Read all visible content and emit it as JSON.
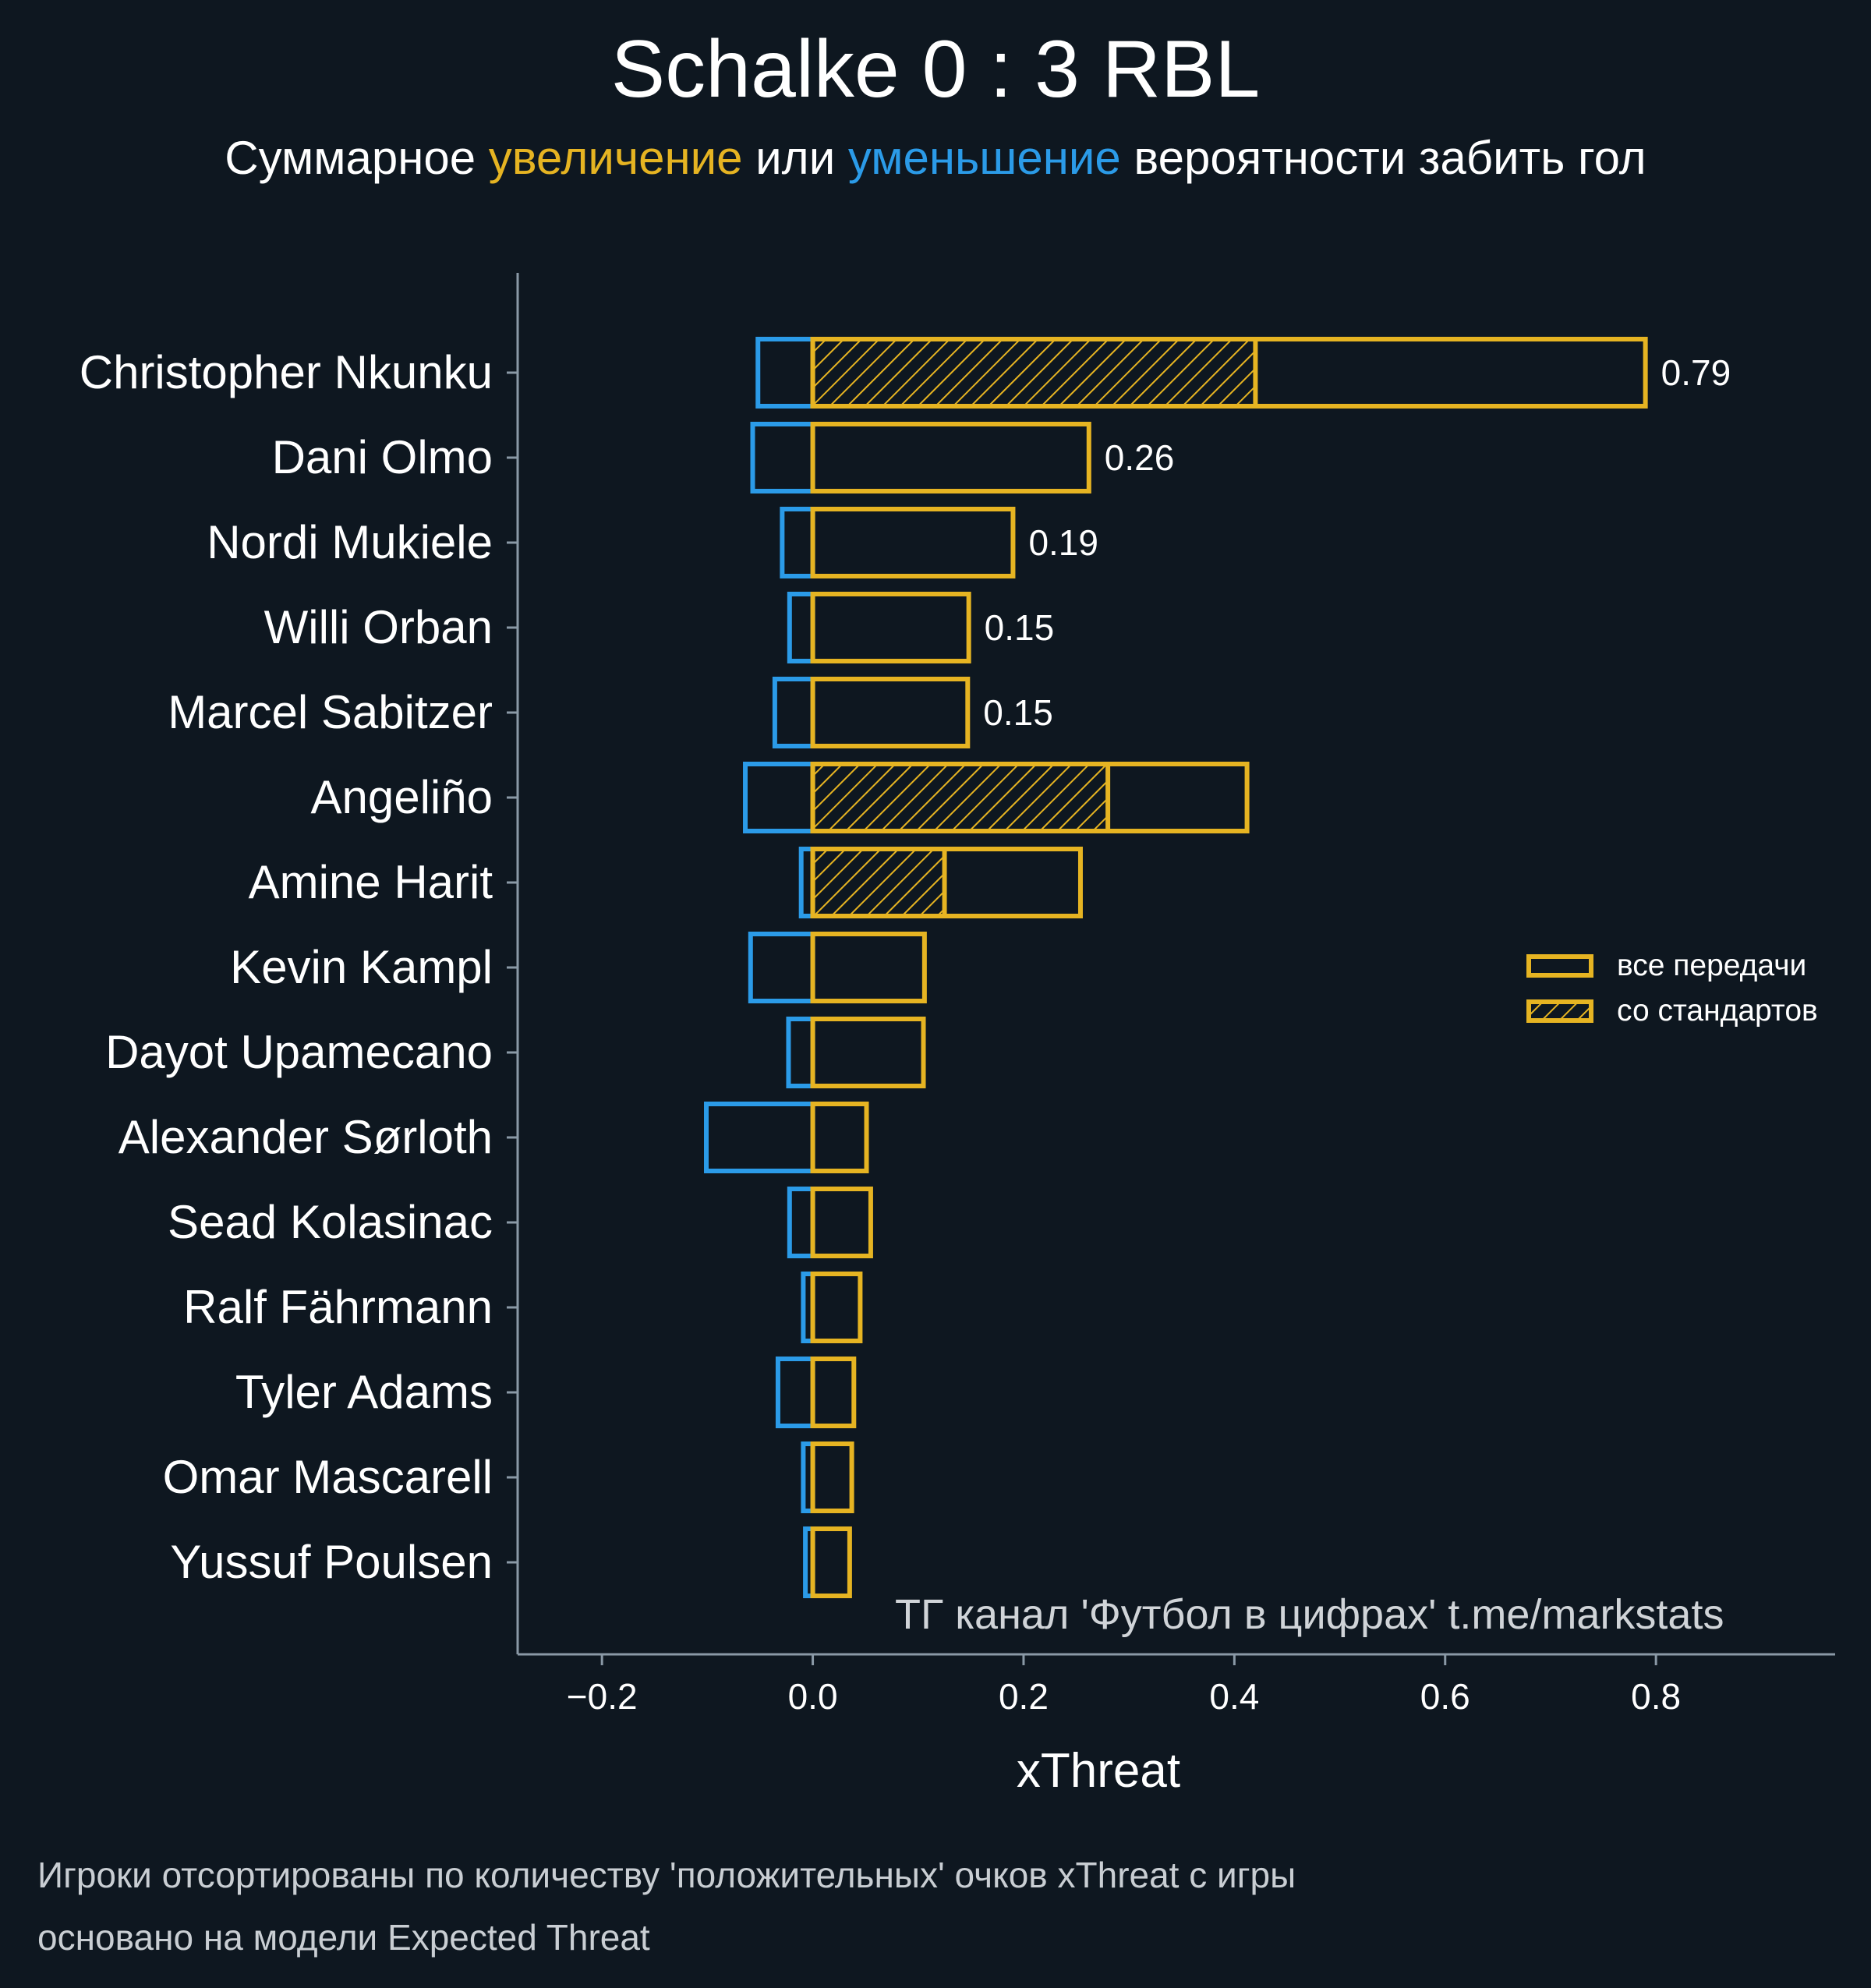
{
  "title": "Schalke 0 : 3 RBL",
  "subtitle": {
    "part1": "Суммарное ",
    "increase": "увеличение",
    "part2": " или ",
    "decrease": "уменьшение",
    "part3": " вероятности забить гол"
  },
  "watermark": "ТГ канал 'Футбол в цифрах'  t.me/markstats",
  "notes": [
    "Игроки отсортированы по количеству 'положительных' очков xThreat с игры",
    "основано на модели Expected Threat"
  ],
  "colors": {
    "background": "#0e1720",
    "positive": "#e6b422",
    "negative": "#2b9be8",
    "axis": "#8a99a6"
  },
  "chart_data": {
    "type": "bar",
    "orientation": "horizontal",
    "xlabel": "xThreat",
    "xlim": [
      -0.28,
      0.97
    ],
    "xticks": [
      -0.2,
      0.0,
      0.2,
      0.4,
      0.6,
      0.8
    ],
    "xtick_labels": [
      "−0.2",
      "0.0",
      "0.2",
      "0.4",
      "0.6",
      "0.8"
    ],
    "categories": [
      "Christopher Nkunku",
      "Dani Olmo",
      "Nordi Mukiele",
      "Willi Orban",
      "Marcel Sabitzer",
      "Angeliño",
      "Amine Harit",
      "Kevin Kampl",
      "Dayot Upamecano",
      "Alexander Sørloth",
      "Sead Kolasinac",
      "Ralf Fährmann",
      "Tyler Adams",
      "Omar Mascarell",
      "Yussuf Poulsen"
    ],
    "series": [
      {
        "name": "все передачи",
        "values": [
          0.79,
          0.262,
          0.19,
          0.148,
          0.147,
          0.412,
          0.254,
          0.106,
          0.105,
          0.051,
          0.055,
          0.045,
          0.039,
          0.037,
          0.035
        ]
      },
      {
        "name": "со стандартов",
        "values": [
          0.42,
          0.0,
          0.0,
          0.0,
          0.0,
          0.28,
          0.125,
          0.0,
          0.0,
          0.0,
          0.0,
          0.0,
          0.0,
          0.0,
          0.0
        ]
      },
      {
        "values": [
          -0.052,
          -0.057,
          -0.029,
          -0.022,
          -0.036,
          -0.064,
          -0.011,
          -0.059,
          -0.023,
          -0.101,
          -0.022,
          -0.009,
          -0.033,
          -0.009,
          -0.007
        ]
      }
    ],
    "value_labels": [
      "0.79",
      "0.26",
      "0.19",
      "0.15",
      "0.15",
      "",
      "",
      "",
      "",
      "",
      "",
      "",
      "",
      "",
      ""
    ],
    "legend": {
      "position": "right",
      "entries": [
        "все передачи",
        "со стандартов"
      ]
    },
    "grid": false
  }
}
